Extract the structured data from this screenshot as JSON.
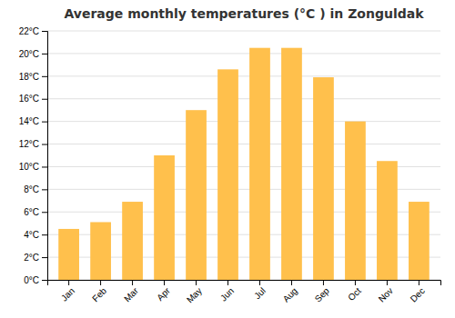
{
  "chart_data": {
    "type": "bar",
    "title": "Average monthly temperatures (°C ) in Zonguldak",
    "categories": [
      "Jan",
      "Feb",
      "Mar",
      "Apr",
      "May",
      "Jun",
      "Jul",
      "Aug",
      "Sep",
      "Oct",
      "Nov",
      "Dec"
    ],
    "values": [
      4.5,
      5.1,
      6.9,
      11.0,
      15.0,
      18.6,
      20.5,
      20.5,
      17.9,
      14.0,
      10.5,
      6.9
    ],
    "color": "#FFC04C",
    "ylim": [
      0,
      22
    ],
    "yticks": [
      {
        "value": 0,
        "label": "0°C"
      },
      {
        "value": 2,
        "label": "2°C"
      },
      {
        "value": 4,
        "label": "4°C"
      },
      {
        "value": 6,
        "label": "6°C"
      },
      {
        "value": 8,
        "label": "8°C"
      },
      {
        "value": 10,
        "label": "10°C"
      },
      {
        "value": 12,
        "label": "12°C"
      },
      {
        "value": 14,
        "label": "14°C"
      },
      {
        "value": 16,
        "label": "16°C"
      },
      {
        "value": 18,
        "label": "18°C"
      },
      {
        "value": 20,
        "label": "20°C"
      },
      {
        "value": 22,
        "label": "22°C"
      }
    ],
    "grid": true
  }
}
